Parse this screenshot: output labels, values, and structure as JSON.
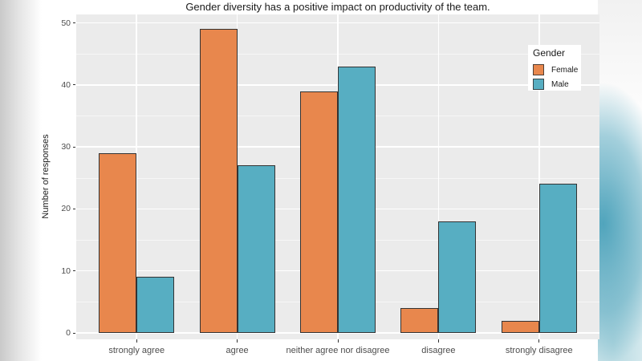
{
  "decor": {
    "left_gradient_color": "#C9C9C9",
    "right_blob_color": "#48A0B9"
  },
  "chart_data": {
    "type": "bar",
    "title": "Gender diversity has a positive impact on productivity of the team.",
    "xlabel": "",
    "ylabel": "Number of responses",
    "categories": [
      "strongly agree",
      "agree",
      "neither agree nor disagree",
      "disagree",
      "strongly disagree"
    ],
    "series": [
      {
        "name": "Female",
        "color": "#E8874D",
        "values": [
          29,
          49,
          39,
          4,
          2
        ]
      },
      {
        "name": "Male",
        "color": "#57AEC2",
        "values": [
          9,
          27,
          43,
          18,
          24
        ]
      }
    ],
    "ylim": [
      0,
      52
    ],
    "y_ticks": [
      0,
      10,
      20,
      30,
      40,
      50
    ],
    "y_minor_ticks": [
      5,
      15,
      25,
      35,
      45
    ],
    "grid": true,
    "legend": {
      "title": "Gender",
      "position": "top-right"
    },
    "styles": {
      "panel_background": "#EBEBEB",
      "gridline_major": "#FFFFFF",
      "gridline_minor": "rgba(255,255,255,0.55)",
      "bar_outline": "#333333",
      "tick_color": "#333333",
      "tick_label_color": "#4D4D4D",
      "title_color": "#1A1A1A"
    }
  }
}
